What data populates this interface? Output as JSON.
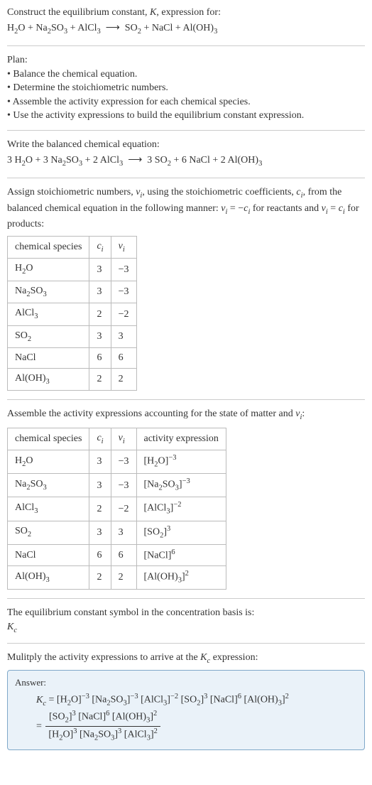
{
  "sec1": {
    "line1": "Construct the equilibrium constant, <span class=\"ital\">K</span>, expression for:",
    "eqn": "H<sub>2</sub>O + Na<sub>2</sub>SO<sub>3</sub> + AlCl<sub>3</sub>&nbsp;&nbsp;&#10230;&nbsp;&nbsp;SO<sub>2</sub> + NaCl + Al(OH)<sub>3</sub>"
  },
  "sec2": {
    "title": "Plan:",
    "b1": "&bull; Balance the chemical equation.",
    "b2": "&bull; Determine the stoichiometric numbers.",
    "b3": "&bull; Assemble the activity expression for each chemical species.",
    "b4": "&bull; Use the activity expressions to build the equilibrium constant expression."
  },
  "sec3": {
    "line1": "Write the balanced chemical equation:",
    "eqn": "3 H<sub>2</sub>O + 3 Na<sub>2</sub>SO<sub>3</sub> + 2 AlCl<sub>3</sub>&nbsp;&nbsp;&#10230;&nbsp;&nbsp;3 SO<sub>2</sub> + 6 NaCl + 2 Al(OH)<sub>3</sub>"
  },
  "sec4": {
    "text": "Assign stoichiometric numbers, <span class=\"ital\">&nu;<sub>i</sub></span>, using the stoichiometric coefficients, <span class=\"ital\">c<sub>i</sub></span>, from the balanced chemical equation in the following manner: <span class=\"ital\">&nu;<sub>i</sub></span> = &minus;<span class=\"ital\">c<sub>i</sub></span> for reactants and <span class=\"ital\">&nu;<sub>i</sub></span> = <span class=\"ital\">c<sub>i</sub></span> for products:",
    "headers": [
      "chemical species",
      "<span class=\"ital\">c<sub>i</sub></span>",
      "<span class=\"ital\">&nu;<sub>i</sub></span>"
    ],
    "rows": [
      [
        "H<sub>2</sub>O",
        "3",
        "&minus;3"
      ],
      [
        "Na<sub>2</sub>SO<sub>3</sub>",
        "3",
        "&minus;3"
      ],
      [
        "AlCl<sub>3</sub>",
        "2",
        "&minus;2"
      ],
      [
        "SO<sub>2</sub>",
        "3",
        "3"
      ],
      [
        "NaCl",
        "6",
        "6"
      ],
      [
        "Al(OH)<sub>3</sub>",
        "2",
        "2"
      ]
    ]
  },
  "sec5": {
    "text": "Assemble the activity expressions accounting for the state of matter and <span class=\"ital\">&nu;<sub>i</sub></span>:",
    "headers": [
      "chemical species",
      "<span class=\"ital\">c<sub>i</sub></span>",
      "<span class=\"ital\">&nu;<sub>i</sub></span>",
      "activity expression"
    ],
    "rows": [
      [
        "H<sub>2</sub>O",
        "3",
        "&minus;3",
        "[H<sub>2</sub>O]<sup>&minus;3</sup>"
      ],
      [
        "Na<sub>2</sub>SO<sub>3</sub>",
        "3",
        "&minus;3",
        "[Na<sub>2</sub>SO<sub>3</sub>]<sup>&minus;3</sup>"
      ],
      [
        "AlCl<sub>3</sub>",
        "2",
        "&minus;2",
        "[AlCl<sub>3</sub>]<sup>&minus;2</sup>"
      ],
      [
        "SO<sub>2</sub>",
        "3",
        "3",
        "[SO<sub>2</sub>]<sup>3</sup>"
      ],
      [
        "NaCl",
        "6",
        "6",
        "[NaCl]<sup>6</sup>"
      ],
      [
        "Al(OH)<sub>3</sub>",
        "2",
        "2",
        "[Al(OH)<sub>3</sub>]<sup>2</sup>"
      ]
    ]
  },
  "sec6": {
    "line1": "The equilibrium constant symbol in the concentration basis is:",
    "sym": "<span class=\"ital\">K<sub>c</sub></span>"
  },
  "sec7": {
    "text": "Mulitply the activity expressions to arrive at the <span class=\"ital\">K<sub>c</sub></span> expression:"
  },
  "answer": {
    "label": "Answer:",
    "line1": "<span class=\"ital\">K<sub>c</sub></span> = [H<sub>2</sub>O]<sup>&minus;3</sup> [Na<sub>2</sub>SO<sub>3</sub>]<sup>&minus;3</sup> [AlCl<sub>3</sub>]<sup>&minus;2</sup> [SO<sub>2</sub>]<sup>3</sup> [NaCl]<sup>6</sup> [Al(OH)<sub>3</sub>]<sup>2</sup>",
    "frac_num": "[SO<sub>2</sub>]<sup>3</sup> [NaCl]<sup>6</sup> [Al(OH)<sub>3</sub>]<sup>2</sup>",
    "frac_den": "[H<sub>2</sub>O]<sup>3</sup> [Na<sub>2</sub>SO<sub>3</sub>]<sup>3</sup> [AlCl<sub>3</sub>]<sup>2</sup>"
  }
}
